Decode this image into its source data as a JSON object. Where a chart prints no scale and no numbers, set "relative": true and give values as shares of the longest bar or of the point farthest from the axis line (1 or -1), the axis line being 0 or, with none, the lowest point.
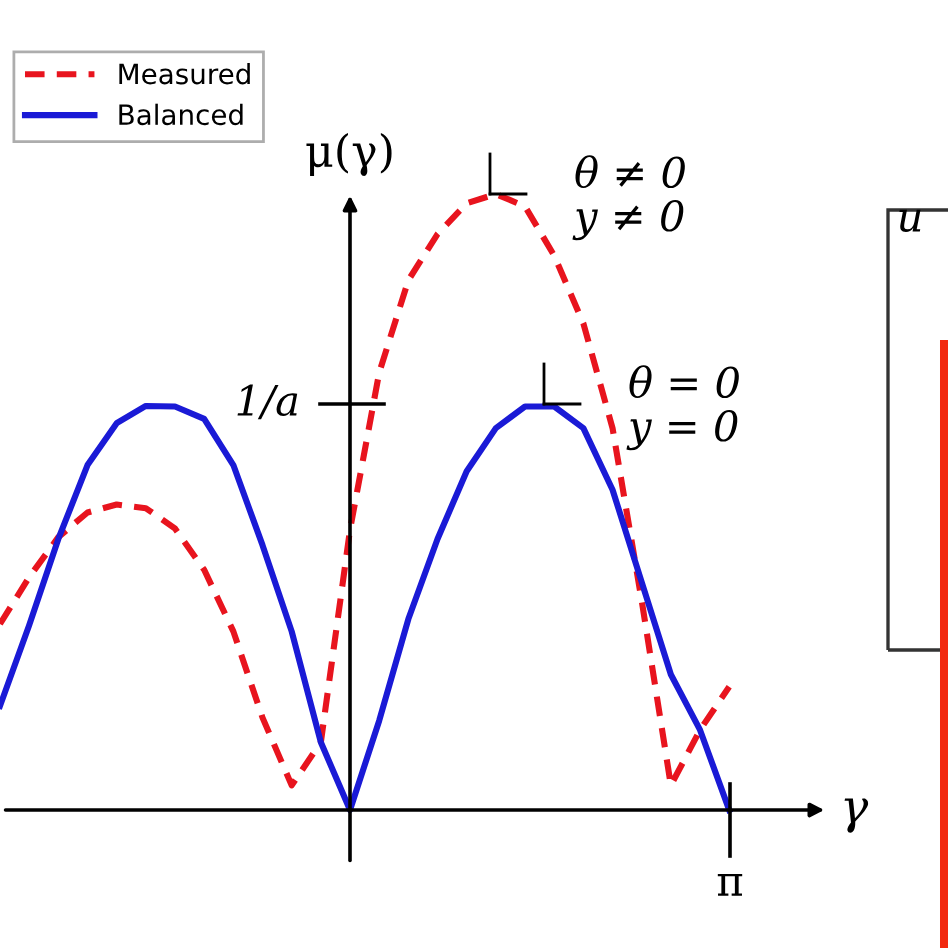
{
  "chart_data": {
    "type": "line",
    "relative": true,
    "xlabel": "γ",
    "ylabel": "μ(γ)",
    "categories": [
      null,
      null,
      null,
      null,
      null,
      null,
      null,
      null,
      null,
      null,
      null,
      null,
      null,
      null,
      null,
      null,
      null,
      null,
      null,
      null,
      null,
      null,
      null,
      null,
      null,
      null
    ],
    "legend": "top left",
    "marker": "none",
    "annotations": [
      "1/a",
      "θ ≠ 0\ny ≠ 0",
      "θ = 0\ny = 0",
      "π",
      "u"
    ],
    "series": [
      {
        "name": "Measured",
        "color": "#e8141e",
        "line_style": "dashed",
        "values": [
          0.302,
          0.378,
          0.443,
          0.483,
          0.496,
          0.49,
          0.457,
          0.39,
          0.29,
          0.15,
          0.04,
          0.11,
          0.455,
          0.71,
          0.86,
          0.935,
          0.985,
          1.0,
          0.98,
          0.9,
          0.79,
          0.62,
          0.34,
          0.04,
          0.13,
          0.2
        ]
      },
      {
        "name": "Balanced",
        "color": "#1a1ad6",
        "line_style": "solid",
        "values": [
          0.169,
          0.3,
          0.44,
          0.56,
          0.628,
          0.656,
          0.655,
          0.635,
          0.56,
          0.43,
          0.29,
          0.11,
          0,
          0.145,
          0.31,
          0.44,
          0.55,
          0.62,
          0.655,
          0.655,
          0.62,
          0.52,
          0.37,
          0.22,
          0.13,
          0
        ]
      }
    ]
  }
}
